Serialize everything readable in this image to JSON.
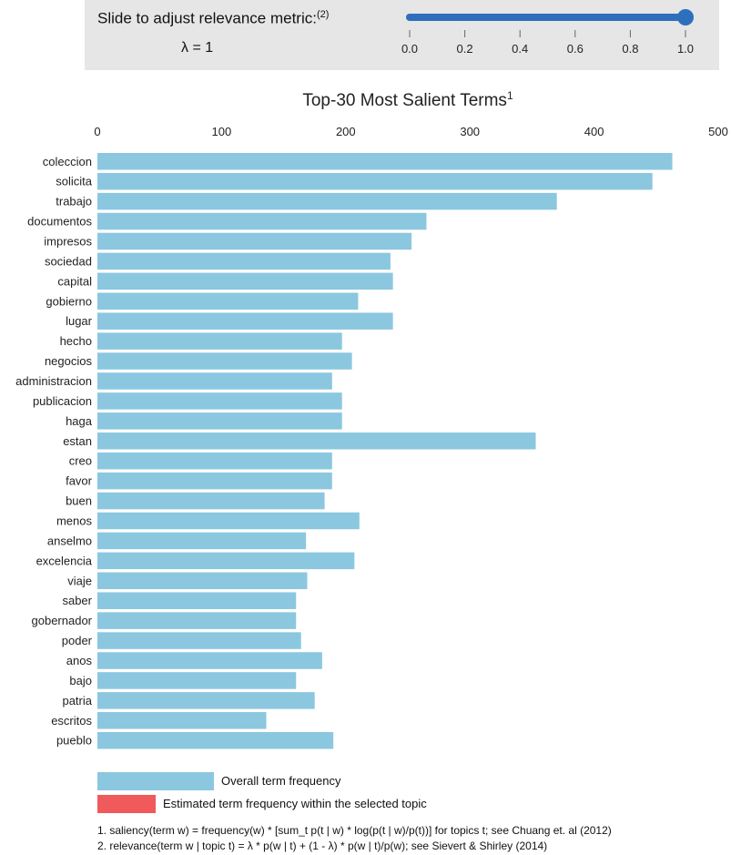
{
  "slider": {
    "label": "Slide to adjust relevance metric:",
    "label_sup": "(2)",
    "lambda_text": "λ = 1",
    "value": 1.0,
    "min": 0.0,
    "max": 1.0,
    "ticks": [
      "0.0",
      "0.2",
      "0.4",
      "0.6",
      "0.8",
      "1.0"
    ],
    "color": "#2e6fbd"
  },
  "chart_data": {
    "type": "bar",
    "orientation": "horizontal",
    "title": "Top-30 Most Salient Terms",
    "title_sup": "1",
    "xlim": [
      0,
      500
    ],
    "x_ticks": [
      "0",
      "100",
      "200",
      "300",
      "400",
      "500"
    ],
    "categories": [
      "coleccion",
      "solicita",
      "trabajo",
      "documentos",
      "impresos",
      "sociedad",
      "capital",
      "gobierno",
      "lugar",
      "hecho",
      "negocios",
      "administracion",
      "publicacion",
      "haga",
      "estan",
      "creo",
      "favor",
      "buen",
      "menos",
      "anselmo",
      "excelencia",
      "viaje",
      "saber",
      "gobernador",
      "poder",
      "anos",
      "bajo",
      "patria",
      "escritos",
      "pueblo"
    ],
    "series": [
      {
        "name": "Overall term frequency",
        "color": "#8cc7e0",
        "values": [
          463,
          447,
          370,
          265,
          253,
          236,
          238,
          210,
          238,
          197,
          205,
          189,
          197,
          197,
          353,
          189,
          189,
          183,
          211,
          168,
          207,
          169,
          160,
          160,
          164,
          181,
          160,
          175,
          136,
          190
        ]
      }
    ],
    "legend": [
      {
        "label": "Overall term frequency",
        "color": "#8cc7e0"
      },
      {
        "label": "Estimated term frequency within the selected topic",
        "color": "#f05a5a"
      }
    ]
  },
  "footnotes": [
    "1. saliency(term w) = frequency(w) * [sum_t p(t | w) * log(p(t | w)/p(t))] for topics t; see Chuang et. al (2012)",
    "2. relevance(term w | topic t) = λ * p(w | t) + (1 - λ) * p(w | t)/p(w); see Sievert & Shirley (2014)"
  ]
}
